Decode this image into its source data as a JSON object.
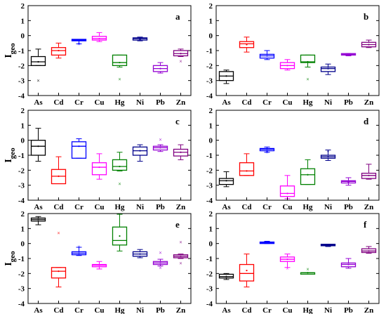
{
  "chart_data": {
    "type": "box",
    "categories": [
      "As",
      "Cd",
      "Cr",
      "Cu",
      "Hg",
      "Ni",
      "Pb",
      "Zn"
    ],
    "colors": {
      "As": "#000000",
      "Cd": "#ff0000",
      "Cr": "#0000ff",
      "Cu": "#ff00ff",
      "Hg": "#008000",
      "Ni": "#00008b",
      "Pb": "#9400d3",
      "Zn": "#800080"
    },
    "ylabel_main": "I",
    "ylabel_sub": "geo",
    "ylim": [
      -4,
      2
    ],
    "yticks": [
      -4,
      -3,
      -2,
      -1,
      0,
      1,
      2
    ],
    "panels": [
      {
        "label": "a",
        "boxes": [
          {
            "min": -2.0,
            "q1": -2.0,
            "median": -1.75,
            "q3": -1.4,
            "max": -0.9,
            "mean": -1.75,
            "outliers": [
              -3.0
            ]
          },
          {
            "min": -1.5,
            "q1": -1.3,
            "median": -1.0,
            "q3": -0.8,
            "max": -0.5,
            "mean": -1.0,
            "outliers": []
          },
          {
            "min": -0.55,
            "q1": -0.35,
            "median": -0.3,
            "q3": -0.25,
            "max": -0.25,
            "mean": -0.3,
            "outliers": [
              -0.55
            ]
          },
          {
            "min": -0.4,
            "q1": -0.3,
            "median": -0.2,
            "q3": -0.05,
            "max": 0.2,
            "mean": -0.2,
            "outliers": []
          },
          {
            "min": -2.1,
            "q1": -2.0,
            "median": -1.8,
            "q3": -1.3,
            "max": -1.3,
            "mean": -1.8,
            "outliers": [
              -2.9
            ]
          },
          {
            "min": -0.35,
            "q1": -0.3,
            "median": -0.2,
            "q3": -0.15,
            "max": -0.1,
            "mean": -0.25,
            "outliers": []
          },
          {
            "min": -2.5,
            "q1": -2.4,
            "median": -2.2,
            "q3": -2.0,
            "max": -1.8,
            "mean": -2.2,
            "outliers": []
          },
          {
            "min": -1.4,
            "q1": -1.35,
            "median": -1.2,
            "q3": -1.0,
            "max": -0.9,
            "mean": -1.2,
            "outliers": [
              -1.7
            ]
          }
        ]
      },
      {
        "label": "b",
        "boxes": [
          {
            "min": -3.2,
            "q1": -3.0,
            "median": -2.7,
            "q3": -2.4,
            "max": -2.3,
            "mean": -2.7,
            "outliers": []
          },
          {
            "min": -1.1,
            "q1": -0.8,
            "median": -0.55,
            "q3": -0.4,
            "max": -0.1,
            "mean": -0.6,
            "outliers": []
          },
          {
            "min": -1.6,
            "q1": -1.5,
            "median": -1.35,
            "q3": -1.25,
            "max": -1.0,
            "mean": -1.35,
            "outliers": []
          },
          {
            "min": -2.3,
            "q1": -2.2,
            "median": -2.0,
            "q3": -1.8,
            "max": -1.6,
            "mean": -2.0,
            "outliers": []
          },
          {
            "min": -2.1,
            "q1": -1.8,
            "median": -1.75,
            "q3": -1.3,
            "max": -1.3,
            "mean": -1.75,
            "outliers": [
              -2.9
            ]
          },
          {
            "min": -2.6,
            "q1": -2.4,
            "median": -2.2,
            "q3": -2.1,
            "max": -1.9,
            "mean": -2.2,
            "outliers": []
          },
          {
            "min": -1.35,
            "q1": -1.3,
            "median": -1.25,
            "q3": -1.2,
            "max": -1.2,
            "mean": -1.25,
            "outliers": []
          },
          {
            "min": -0.8,
            "q1": -0.75,
            "median": -0.6,
            "q3": -0.45,
            "max": -0.3,
            "mean": -0.6,
            "outliers": []
          }
        ]
      },
      {
        "label": "c",
        "boxes": [
          {
            "min": -1.4,
            "q1": -1.0,
            "median": -0.4,
            "q3": 0.0,
            "max": 0.8,
            "mean": -0.4,
            "outliers": []
          },
          {
            "min": -2.9,
            "q1": -2.9,
            "median": -2.4,
            "q3": -1.95,
            "max": -1.1,
            "mean": -2.4,
            "outliers": []
          },
          {
            "min": -1.2,
            "q1": -1.2,
            "median": -0.4,
            "q3": -0.1,
            "max": 0.1,
            "mean": -0.4,
            "outliers": []
          },
          {
            "min": -2.6,
            "q1": -2.3,
            "median": -1.8,
            "q3": -1.5,
            "max": -0.9,
            "mean": -1.8,
            "outliers": []
          },
          {
            "min": -2.05,
            "q1": -2.0,
            "median": -1.75,
            "q3": -1.3,
            "max": -0.8,
            "mean": -1.75,
            "outliers": [
              -2.9
            ]
          },
          {
            "min": -1.4,
            "q1": -1.0,
            "median": -0.7,
            "q3": -0.45,
            "max": -0.3,
            "mean": -0.7,
            "outliers": []
          },
          {
            "min": -0.75,
            "q1": -0.65,
            "median": -0.5,
            "q3": -0.4,
            "max": -0.3,
            "mean": -0.5,
            "outliers": [
              0.05
            ]
          },
          {
            "min": -1.3,
            "q1": -1.05,
            "median": -0.8,
            "q3": -0.6,
            "max": -0.3,
            "mean": -0.8,
            "outliers": []
          }
        ]
      },
      {
        "label": "d",
        "boxes": [
          {
            "min": -3.1,
            "q1": -2.95,
            "median": -2.7,
            "q3": -2.55,
            "max": -2.1,
            "mean": -2.7,
            "outliers": []
          },
          {
            "min": -2.35,
            "q1": -2.35,
            "median": -2.05,
            "q3": -1.5,
            "max": -0.9,
            "mean": -2.05,
            "outliers": []
          },
          {
            "min": -0.8,
            "q1": -0.7,
            "median": -0.6,
            "q3": -0.55,
            "max": -0.45,
            "mean": -0.6,
            "outliers": [
              -0.8
            ]
          },
          {
            "min": -3.9,
            "q1": -3.75,
            "median": -3.55,
            "q3": -3.05,
            "max": -2.35,
            "mean": -3.55,
            "outliers": []
          },
          {
            "min": -2.95,
            "q1": -2.95,
            "median": -2.3,
            "q3": -1.9,
            "max": -1.3,
            "mean": -2.3,
            "outliers": []
          },
          {
            "min": -1.35,
            "q1": -1.2,
            "median": -1.1,
            "q3": -1.0,
            "max": -0.65,
            "mean": -1.1,
            "outliers": [
              -0.7
            ]
          },
          {
            "min": -3.0,
            "q1": -2.85,
            "median": -2.75,
            "q3": -2.7,
            "max": -2.5,
            "mean": -2.8,
            "outliers": []
          },
          {
            "min": -2.6,
            "q1": -2.55,
            "median": -2.35,
            "q3": -2.2,
            "max": -1.6,
            "mean": -2.35,
            "outliers": []
          }
        ]
      },
      {
        "label": "e",
        "boxes": [
          {
            "min": 1.25,
            "q1": 1.5,
            "median": 1.6,
            "q3": 1.7,
            "max": 1.8,
            "mean": 1.6,
            "outliers": []
          },
          {
            "min": -2.9,
            "q1": -2.3,
            "median": -1.85,
            "q3": -1.6,
            "max": -1.6,
            "mean": -1.85,
            "outliers": [
              0.7
            ]
          },
          {
            "min": -0.8,
            "q1": -0.75,
            "median": -0.65,
            "q3": -0.55,
            "max": -0.25,
            "mean": -0.65,
            "outliers": [
              -0.2
            ]
          },
          {
            "min": -1.7,
            "q1": -1.55,
            "median": -1.45,
            "q3": -1.4,
            "max": -1.2,
            "mean": -1.45,
            "outliers": []
          },
          {
            "min": -0.5,
            "q1": -0.1,
            "median": 0.2,
            "q3": 1.1,
            "max": 1.95,
            "mean": 0.5,
            "outliers": []
          },
          {
            "min": -0.95,
            "q1": -0.85,
            "median": -0.7,
            "q3": -0.55,
            "max": -0.4,
            "mean": -0.7,
            "outliers": []
          },
          {
            "min": -1.5,
            "q1": -1.4,
            "median": -1.3,
            "q3": -1.2,
            "max": -1.05,
            "mean": -1.3,
            "outliers": [
              -1.6,
              -0.6
            ]
          },
          {
            "min": -1.0,
            "q1": -0.95,
            "median": -0.85,
            "q3": -0.75,
            "max": -0.7,
            "mean": -0.85,
            "outliers": [
              0.1,
              -1.3
            ]
          }
        ]
      },
      {
        "label": "f",
        "boxes": [
          {
            "min": -2.4,
            "q1": -2.3,
            "median": -2.2,
            "q3": -2.05,
            "max": -2.0,
            "mean": -2.2,
            "outliers": []
          },
          {
            "min": -2.9,
            "q1": -2.5,
            "median": -2.0,
            "q3": -1.4,
            "max": -0.7,
            "mean": -1.8,
            "outliers": []
          },
          {
            "min": 0.0,
            "q1": 0.0,
            "median": 0.05,
            "q3": 0.1,
            "max": 0.15,
            "mean": 0.05,
            "outliers": []
          },
          {
            "min": -1.6,
            "q1": -1.2,
            "median": -1.05,
            "q3": -0.9,
            "max": -0.7,
            "mean": -1.05,
            "outliers": [
              -1.65
            ]
          },
          {
            "min": -1.95,
            "q1": -1.95,
            "median": -1.95,
            "q3": -1.95,
            "max": -1.95,
            "mean": -1.95,
            "outliers": [
              -1.7
            ]
          },
          {
            "min": -0.2,
            "q1": -0.15,
            "median": -0.1,
            "q3": -0.05,
            "max": -0.05,
            "mean": -0.1,
            "outliers": []
          },
          {
            "min": -1.65,
            "q1": -1.55,
            "median": -1.4,
            "q3": -1.3,
            "max": -1.0,
            "mean": -1.4,
            "outliers": []
          },
          {
            "min": -0.65,
            "q1": -0.6,
            "median": -0.5,
            "q3": -0.35,
            "max": -0.2,
            "mean": -0.5,
            "outliers": []
          }
        ]
      }
    ]
  }
}
